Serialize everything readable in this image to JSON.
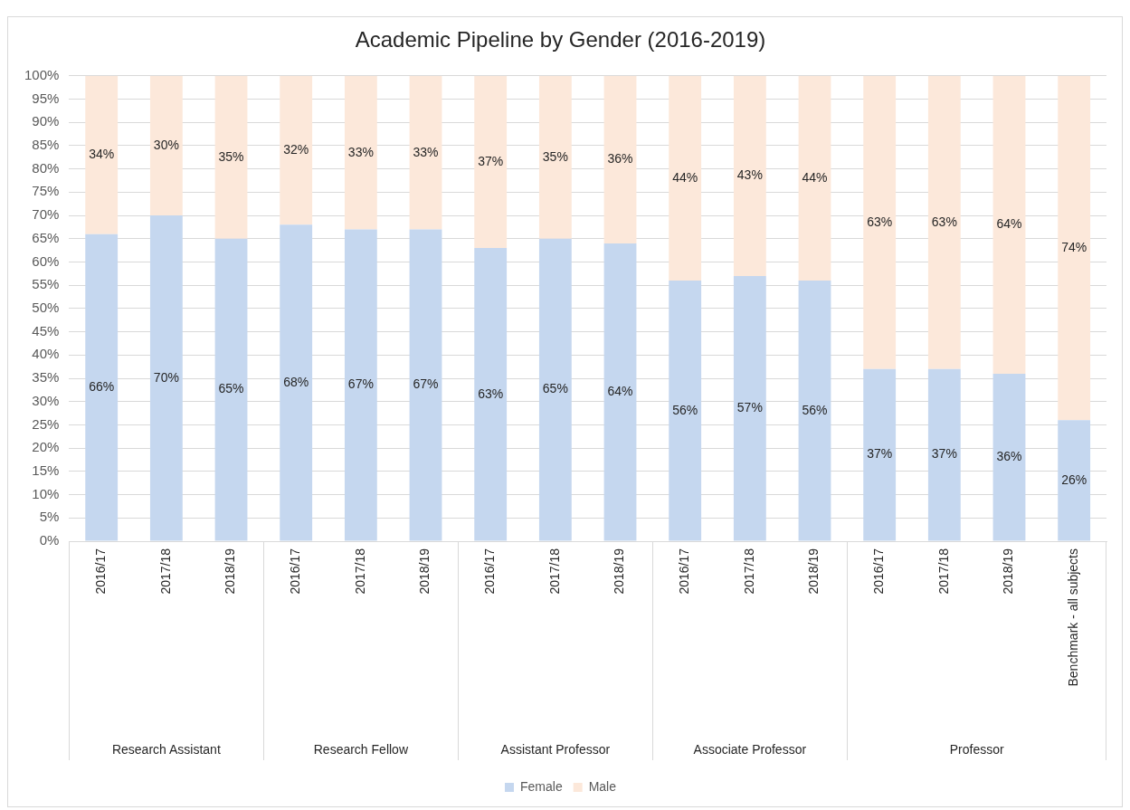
{
  "chart_data": {
    "type": "bar",
    "title": "Academic Pipeline by Gender (2016-2019)",
    "categories": [
      "2016/17",
      "2017/18",
      "2018/19",
      "2016/17",
      "2017/18",
      "2018/19",
      "2016/17",
      "2017/18",
      "2018/19",
      "2016/17",
      "2017/18",
      "2018/19",
      "2016/17",
      "2017/18",
      "2018/19",
      "Benchmark - all subjects"
    ],
    "series": [
      {
        "name": "Female",
        "color": "#c5d7ef",
        "values": [
          66,
          70,
          65,
          68,
          67,
          67,
          63,
          65,
          64,
          56,
          57,
          56,
          37,
          37,
          36,
          26
        ],
        "value_labels": [
          "66%",
          "70%",
          "65%",
          "68%",
          "67%",
          "67%",
          "63%",
          "65%",
          "64%",
          "56%",
          "57%",
          "56%",
          "37%",
          "37%",
          "36%",
          "26%"
        ]
      },
      {
        "name": "Male",
        "color": "#fce8da",
        "values": [
          34,
          30,
          35,
          32,
          33,
          33,
          37,
          35,
          36,
          44,
          43,
          44,
          63,
          63,
          64,
          74
        ],
        "value_labels": [
          "34%",
          "30%",
          "35%",
          "32%",
          "33%",
          "33%",
          "37%",
          "35%",
          "36%",
          "44%",
          "43%",
          "44%",
          "63%",
          "63%",
          "64%",
          "74%"
        ]
      }
    ],
    "stacked": true,
    "ylim": [
      0,
      100
    ],
    "yticks": [
      {
        "value": 0,
        "label": "0%"
      },
      {
        "value": 5,
        "label": "5%"
      },
      {
        "value": 10,
        "label": "10%"
      },
      {
        "value": 15,
        "label": "15%"
      },
      {
        "value": 20,
        "label": "20%"
      },
      {
        "value": 25,
        "label": "25%"
      },
      {
        "value": 30,
        "label": "30%"
      },
      {
        "value": 35,
        "label": "35%"
      },
      {
        "value": 40,
        "label": "40%"
      },
      {
        "value": 45,
        "label": "45%"
      },
      {
        "value": 50,
        "label": "50%"
      },
      {
        "value": 55,
        "label": "55%"
      },
      {
        "value": 60,
        "label": "60%"
      },
      {
        "value": 65,
        "label": "65%"
      },
      {
        "value": 70,
        "label": "70%"
      },
      {
        "value": 75,
        "label": "75%"
      },
      {
        "value": 80,
        "label": "80%"
      },
      {
        "value": 85,
        "label": "85%"
      },
      {
        "value": 90,
        "label": "90%"
      },
      {
        "value": 95,
        "label": "95%"
      },
      {
        "value": 100,
        "label": "100%"
      }
    ],
    "grid": "y",
    "legend": "bottom",
    "annotations": [
      "Research Assistant",
      "Research Fellow",
      "Assistant Professor",
      "Associate Professor",
      "Professor"
    ]
  }
}
